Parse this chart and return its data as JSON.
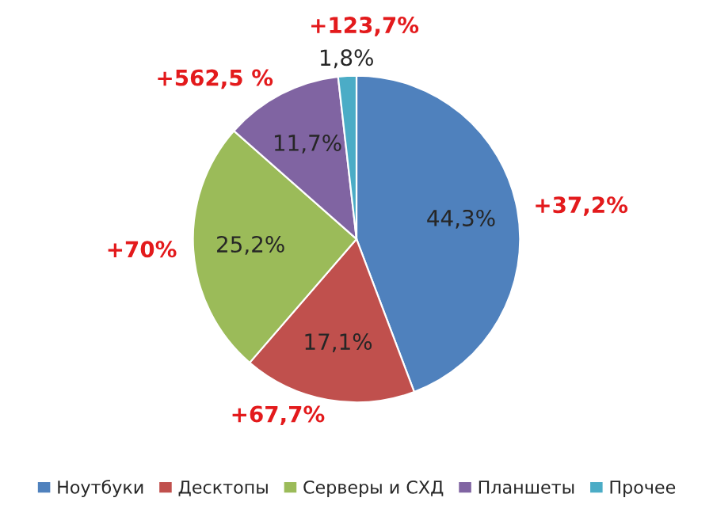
{
  "chart_data": {
    "type": "pie",
    "categories": [
      "Ноутбуки",
      "Десктопы",
      "Серверы и СХД",
      "Планшеты",
      "Прочее"
    ],
    "values": [
      44.3,
      17.1,
      25.2,
      11.7,
      1.8
    ],
    "colors": [
      "#4f81bd",
      "#c0504d",
      "#9bbb59",
      "#8064a2",
      "#4bacc6"
    ],
    "value_labels": [
      "44,3%",
      "17,1%",
      "25,2%",
      "11,7%",
      "1,8%"
    ],
    "annotations": [
      "+37,2%",
      "+67,7%",
      "+70%",
      "+562,5 %",
      "+123,7%"
    ],
    "legend": "bottom"
  }
}
